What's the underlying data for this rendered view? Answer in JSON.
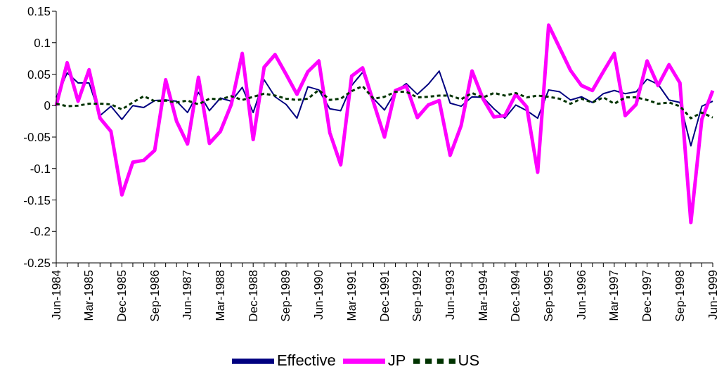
{
  "chart_data": {
    "type": "line",
    "categories": [
      "Jun-1984",
      null,
      null,
      "Mar-1985",
      null,
      null,
      "Dec-1985",
      null,
      null,
      "Sep-1986",
      null,
      null,
      "Jun-1987",
      null,
      null,
      "Mar-1988",
      null,
      null,
      "Dec-1988",
      null,
      null,
      "Sep-1989",
      null,
      null,
      "Jun-1990",
      null,
      null,
      "Mar-1991",
      null,
      null,
      "Dec-1991",
      null,
      null,
      "Sep-1992",
      null,
      null,
      "Jun-1993",
      null,
      null,
      "Mar-1994",
      null,
      null,
      "Dec-1994",
      null,
      null,
      "Sep-1995",
      null,
      null,
      "Jun-1996",
      null,
      null,
      "Mar-1997",
      null,
      null,
      "Dec-1997",
      null,
      null,
      "Sep-1998",
      null,
      null,
      "Jun-1999"
    ],
    "series": [
      {
        "name": "Effective",
        "color": "#000080",
        "line_style": "solid",
        "values": [
          0.013,
          0.052,
          0.036,
          0.036,
          -0.016,
          -0.001,
          -0.022,
          0.0,
          -0.003,
          0.008,
          0.009,
          0.007,
          -0.011,
          0.021,
          -0.008,
          0.012,
          0.007,
          0.029,
          -0.011,
          0.041,
          0.014,
          0.002,
          -0.02,
          0.03,
          0.025,
          -0.005,
          -0.008,
          0.032,
          0.053,
          0.011,
          -0.007,
          0.022,
          0.035,
          0.018,
          0.034,
          0.055,
          0.004,
          -0.001,
          0.014,
          0.013,
          -0.005,
          -0.02,
          0.001,
          -0.008,
          -0.02,
          0.025,
          0.022,
          0.009,
          0.014,
          0.005,
          0.019,
          0.024,
          0.019,
          0.022,
          0.042,
          0.034,
          0.009,
          0.005,
          -0.064,
          -0.001,
          0.007
        ]
      },
      {
        "name": "JP",
        "color": "#ff00ff",
        "line_style": "solid",
        "values": [
          0.0,
          0.068,
          0.007,
          0.057,
          -0.02,
          -0.041,
          -0.142,
          -0.09,
          -0.087,
          -0.071,
          0.041,
          -0.025,
          -0.061,
          0.045,
          -0.06,
          -0.041,
          0.002,
          0.083,
          -0.054,
          0.061,
          0.081,
          0.05,
          0.018,
          0.054,
          0.071,
          -0.043,
          -0.094,
          0.047,
          0.06,
          0.005,
          -0.05,
          0.024,
          0.031,
          -0.019,
          0.001,
          0.008,
          -0.079,
          -0.032,
          0.055,
          0.011,
          -0.018,
          -0.016,
          0.018,
          -0.002,
          -0.106,
          0.128,
          0.092,
          0.056,
          0.032,
          0.024,
          0.054,
          0.083,
          -0.016,
          0.002,
          0.071,
          0.032,
          0.065,
          0.036,
          -0.186,
          -0.022,
          0.024
        ]
      },
      {
        "name": "US",
        "color": "#003300",
        "line_style": "dashed",
        "values": [
          0.003,
          -0.001,
          0.0,
          0.003,
          0.003,
          0.002,
          -0.006,
          0.005,
          0.015,
          0.007,
          0.008,
          0.005,
          0.008,
          0.002,
          0.011,
          0.01,
          0.015,
          0.009,
          0.014,
          0.019,
          0.016,
          0.011,
          0.009,
          0.011,
          0.025,
          0.009,
          0.011,
          0.023,
          0.031,
          0.011,
          0.014,
          0.022,
          0.022,
          0.013,
          0.014,
          0.016,
          0.016,
          0.01,
          0.02,
          0.013,
          0.02,
          0.016,
          0.02,
          0.013,
          0.016,
          0.014,
          0.011,
          0.003,
          0.011,
          0.005,
          0.013,
          0.003,
          0.013,
          0.013,
          0.009,
          0.003,
          0.005,
          -0.001,
          -0.02,
          -0.011,
          -0.019
        ]
      }
    ],
    "ylim": [
      -0.25,
      0.15
    ],
    "yticks": [
      -0.25,
      -0.2,
      -0.15,
      -0.1,
      -0.05,
      0,
      0.05,
      0.1,
      0.15
    ],
    "grid": false,
    "legend": "bottom",
    "marker": "none"
  }
}
